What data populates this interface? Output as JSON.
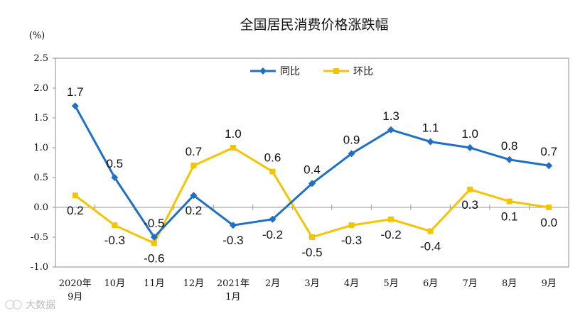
{
  "chart_data": {
    "type": "line",
    "title": "全国居民消费价格涨跌幅",
    "ylabel": "(%)",
    "xlabel": "",
    "ylim": [
      -1.0,
      2.5
    ],
    "yticks": [
      "2.5",
      "2.0",
      "1.5",
      "1.0",
      "0.5",
      "0.0",
      "-0.5",
      "-1.0"
    ],
    "ytick_values": [
      2.5,
      2.0,
      1.5,
      1.0,
      0.5,
      0.0,
      -0.5,
      -1.0
    ],
    "categories": [
      [
        "2020年",
        "9月"
      ],
      [
        "10月"
      ],
      [
        "11月"
      ],
      [
        "12月"
      ],
      [
        "2021年",
        "1月"
      ],
      [
        "2月"
      ],
      [
        "3月"
      ],
      [
        "4月"
      ],
      [
        "5月"
      ],
      [
        "6月"
      ],
      [
        "7月"
      ],
      [
        "8月"
      ],
      [
        "9月"
      ]
    ],
    "series": [
      {
        "name": "同比",
        "color": "#1f6fc5",
        "marker": "diamond",
        "values": [
          1.7,
          0.5,
          -0.5,
          0.2,
          -0.3,
          -0.2,
          0.4,
          0.9,
          1.3,
          1.1,
          1.0,
          0.8,
          0.7
        ],
        "labels": [
          "1.7",
          "0.5",
          "-0.5",
          "0.2",
          "-0.3",
          "-0.2",
          "0.4",
          "0.9",
          "1.3",
          "1.1",
          "1.0",
          "0.8",
          "0.7"
        ]
      },
      {
        "name": "环比",
        "color": "#f5c400",
        "marker": "square",
        "values": [
          0.2,
          -0.3,
          -0.6,
          0.7,
          1.0,
          0.6,
          -0.5,
          -0.3,
          -0.2,
          -0.4,
          0.3,
          0.1,
          0.0
        ],
        "labels": [
          "0.2",
          "-0.3",
          "-0.6",
          "0.7",
          "1.0",
          "0.6",
          "-0.5",
          "-0.3",
          "-0.2",
          "-0.4",
          "0.3",
          "0.1",
          "0.0"
        ]
      }
    ],
    "legend": "top-center",
    "grid": false
  },
  "watermark": "大数据"
}
